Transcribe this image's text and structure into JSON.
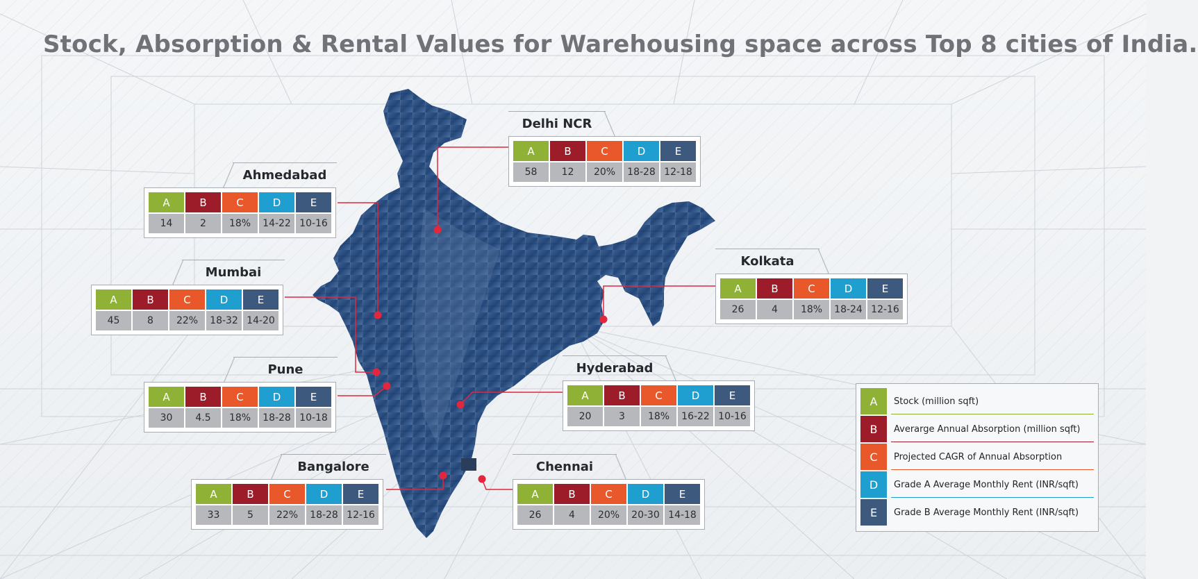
{
  "title": "Stock, Absorption & Rental Values for Warehousing space across Top 8 cities of India.",
  "colors": {
    "A": "#8fb236",
    "B": "#9c1c2a",
    "C": "#e9582a",
    "D": "#1f9ed0",
    "E": "#3d5a7e",
    "connector": "#e2263c"
  },
  "cities": [
    {
      "id": "delhi-ncr",
      "name": "Delhi NCR",
      "values": [
        "58",
        "12",
        "20%",
        "18-28",
        "12-18"
      ]
    },
    {
      "id": "ahmedabad",
      "name": "Ahmedabad",
      "values": [
        "14",
        "2",
        "18%",
        "14-22",
        "10-16"
      ]
    },
    {
      "id": "mumbai",
      "name": "Mumbai",
      "values": [
        "45",
        "8",
        "22%",
        "18-32",
        "14-20"
      ]
    },
    {
      "id": "pune",
      "name": "Pune",
      "values": [
        "30",
        "4.5",
        "18%",
        "18-28",
        "10-18"
      ]
    },
    {
      "id": "bangalore",
      "name": "Bangalore",
      "values": [
        "33",
        "5",
        "22%",
        "18-28",
        "12-16"
      ]
    },
    {
      "id": "chennai",
      "name": "Chennai",
      "values": [
        "26",
        "4",
        "20%",
        "20-30",
        "14-18"
      ]
    },
    {
      "id": "hyderabad",
      "name": "Hyderabad",
      "values": [
        "20",
        "3",
        "18%",
        "16-22",
        "10-16"
      ]
    },
    {
      "id": "kolkata",
      "name": "Kolkata",
      "values": [
        "26",
        "4",
        "18%",
        "18-24",
        "12-16"
      ]
    }
  ],
  "legend": [
    {
      "key": "A",
      "label": "Stock (million sqft)"
    },
    {
      "key": "B",
      "label": "Averarge Annual Absorption (million sqft)"
    },
    {
      "key": "C",
      "label": "Projected CAGR of Annual Absorption"
    },
    {
      "key": "D",
      "label": "Grade A Average Monthly Rent (INR/sqft)"
    },
    {
      "key": "E",
      "label": "Grade B Average Monthly Rent (INR/sqft)"
    }
  ]
}
